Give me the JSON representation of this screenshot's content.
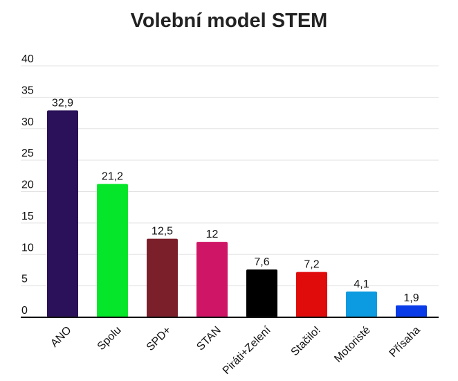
{
  "chart_data": {
    "type": "bar",
    "title": "Volební model STEM",
    "xlabel": "",
    "ylabel": "",
    "categories": [
      "ANO",
      "Spolu",
      "SPD+",
      "STAN",
      "Piráti+Zelení",
      "Stačilo!",
      "Motoristé",
      "Přísaha"
    ],
    "values": [
      32.9,
      21.2,
      12.5,
      12,
      7.6,
      7.2,
      4.1,
      1.9
    ],
    "value_labels": [
      "32,9",
      "21,2",
      "12,5",
      "12",
      "7,6",
      "7,2",
      "4,1",
      "1,9"
    ],
    "colors": [
      "#2a1159",
      "#05e62a",
      "#7b1f2b",
      "#cf1566",
      "#000000",
      "#e00c0c",
      "#0c9be0",
      "#0a3be8"
    ],
    "ylim": [
      0,
      40
    ],
    "yticks": [
      "0",
      "5",
      "10",
      "15",
      "20",
      "25",
      "30",
      "35",
      "40"
    ],
    "grid": true,
    "legend": "none"
  }
}
